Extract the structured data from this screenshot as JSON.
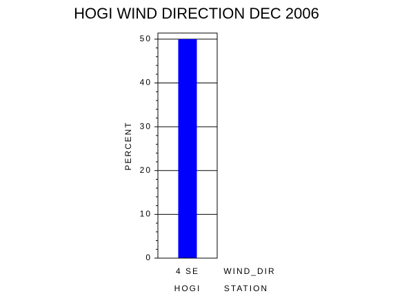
{
  "chart_data": {
    "type": "bar",
    "title": "HOGI WIND DIRECTION DEC 2006",
    "y_label": "PERCENT",
    "x_label": "WIND_DIR",
    "group_label": "STATION",
    "categories": [
      "4 SE"
    ],
    "groups": [
      "HOGI"
    ],
    "values": [
      50
    ],
    "color": "#0000ff",
    "ylim": [
      0,
      51.4
    ],
    "yticks": [
      0,
      10,
      20,
      30,
      40,
      50
    ],
    "yminorticks": [
      2,
      4,
      6,
      8,
      12,
      14,
      16,
      18,
      22,
      24,
      26,
      28,
      32,
      34,
      36,
      38,
      42,
      44,
      46,
      48
    ],
    "grid": true
  }
}
